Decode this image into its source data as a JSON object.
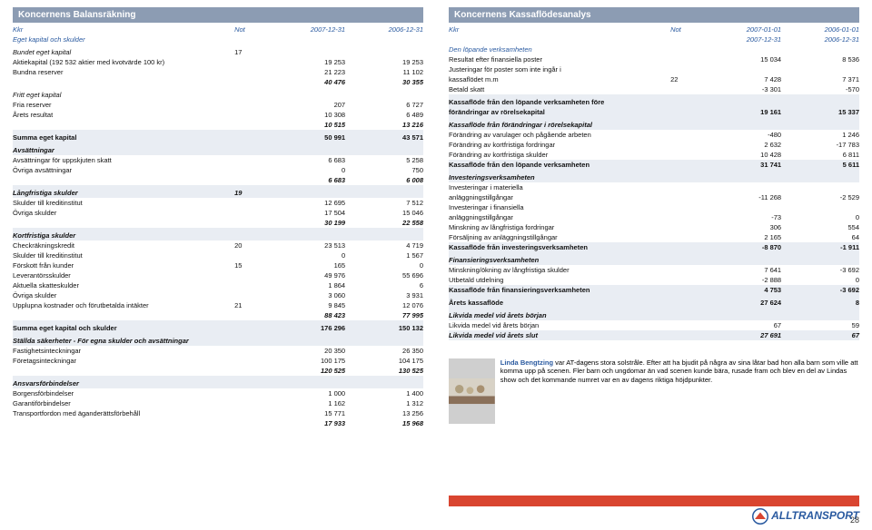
{
  "left": {
    "title": "Koncernens Balansräkning",
    "header": {
      "c1": "Kkr",
      "cnot": "Not",
      "cv": "2007-12-31",
      "cv2": "2006-12-31"
    },
    "sub1": "Eget kapital och skulder",
    "section_bundet": "Bundet eget kapital",
    "not_bundet": "17",
    "rows_bundet": [
      {
        "label": "Aktiekapital (192 532 aktier med kvotvärde 100 kr)",
        "v1": "19 253",
        "v2": "19 253"
      },
      {
        "label": "Bundna reserver",
        "v1": "21 223",
        "v2": "11 102"
      }
    ],
    "sum_bundet": {
      "v1": "40 476",
      "v2": "30 355"
    },
    "section_fritt": "Fritt eget kapital",
    "rows_fritt": [
      {
        "label": "Fria reserver",
        "v1": "207",
        "v2": "6 727"
      },
      {
        "label": "Årets resultat",
        "v1": "10 308",
        "v2": "6 489"
      }
    ],
    "sum_fritt": {
      "v1": "10 515",
      "v2": "13 216"
    },
    "sum_eget": {
      "label": "Summa eget kapital",
      "v1": "50 991",
      "v2": "43 571"
    },
    "avsatt_hdr": "Avsättningar",
    "rows_avsatt": [
      {
        "label": "Avsättningar för uppskjuten skatt",
        "v1": "6 683",
        "v2": "5 258"
      },
      {
        "label": "Övriga avsättningar",
        "v1": "0",
        "v2": "750"
      }
    ],
    "sum_avsatt": {
      "v1": "6 683",
      "v2": "6 008"
    },
    "lang_hdr": "Långfristiga skulder",
    "not_lang": "19",
    "rows_lang": [
      {
        "label": "Skulder till kreditinstitut",
        "v1": "12 695",
        "v2": "7 512"
      },
      {
        "label": "Övriga skulder",
        "v1": "17 504",
        "v2": "15 046"
      }
    ],
    "sum_lang": {
      "v1": "30 199",
      "v2": "22 558"
    },
    "kort_hdr": "Kortfristiga skulder",
    "rows_kort": [
      {
        "label": "Checkräkningskredit",
        "not": "20",
        "v1": "23 513",
        "v2": "4 719"
      },
      {
        "label": "Skulder till kreditinstitut",
        "not": "",
        "v1": "0",
        "v2": "1 567"
      },
      {
        "label": "Förskott från kunder",
        "not": "15",
        "v1": "165",
        "v2": "0"
      },
      {
        "label": "Leverantörsskulder",
        "not": "",
        "v1": "49 976",
        "v2": "55 696"
      },
      {
        "label": "Aktuella skatteskulder",
        "not": "",
        "v1": "1 864",
        "v2": "6"
      },
      {
        "label": "Övriga skulder",
        "not": "",
        "v1": "3 060",
        "v2": "3 931"
      },
      {
        "label": "Upplupna kostnader och förutbetalda intäkter",
        "not": "21",
        "v1": "9 845",
        "v2": "12 076"
      }
    ],
    "sum_kort": {
      "v1": "88 423",
      "v2": "77 995"
    },
    "sum_all": {
      "label": "Summa eget kapital och skulder",
      "v1": "176 296",
      "v2": "150 132"
    },
    "sakerheter_hdr": "Ställda säkerheter - För egna skulder och avsättningar",
    "rows_sak": [
      {
        "label": "Fastighetsinteckningar",
        "v1": "20 350",
        "v2": "26 350"
      },
      {
        "label": "Företagsinteckningar",
        "v1": "100 175",
        "v2": "104 175"
      }
    ],
    "sum_sak": {
      "v1": "120 525",
      "v2": "130 525"
    },
    "ansvar_hdr": "Ansvarsförbindelser",
    "rows_ans": [
      {
        "label": "Borgensförbindelser",
        "v1": "1 000",
        "v2": "1 400"
      },
      {
        "label": "Garantiförbindelser",
        "v1": "1 162",
        "v2": "1 312"
      },
      {
        "label": "Transportfordon med äganderättsförbehåll",
        "v1": "15 771",
        "v2": "13 256"
      }
    ],
    "sum_ans": {
      "v1": "17 933",
      "v2": "15 968"
    }
  },
  "right": {
    "title": "Koncernens Kassaflödesanalys",
    "header": {
      "c1": "Kkr",
      "cnot": "Not",
      "cv_a": "2007-01-01",
      "cv_b": "2007-12-31",
      "cv2_a": "2006-01-01",
      "cv2_b": "2006-12-31"
    },
    "lop_hdr": "Den löpande verksamheten",
    "rows_lop1": [
      {
        "label": "Resultat efter finansiella poster",
        "not": "",
        "v1": "15 034",
        "v2": "8 536"
      },
      {
        "label": "Justeringar för poster som inte ingår i",
        "not": "",
        "v1": "",
        "v2": ""
      },
      {
        "label": "kassaflödet m.m",
        "not": "22",
        "v1": "7 428",
        "v2": "7 371"
      },
      {
        "label": "Betald skatt",
        "not": "",
        "v1": "-3 301",
        "v2": "-570"
      }
    ],
    "kf_fore": {
      "label1": "Kassaflöde från den löpande verksamheten före",
      "label2": "förändringar av rörelsekapital",
      "v1": "19 161",
      "v2": "15 337"
    },
    "ror_hdr": "Kassaflöde från förändringar i rörelsekapital",
    "rows_ror": [
      {
        "label": "Förändring av varulager och pågående arbeten",
        "v1": "-480",
        "v2": "1 246"
      },
      {
        "label": "Förändring av kortfristiga fordringar",
        "v1": "2 632",
        "v2": "-17 783"
      },
      {
        "label": "Förändring av kortfristiga skulder",
        "v1": "10 428",
        "v2": "6 811"
      }
    ],
    "kf_lop": {
      "label": "Kassaflöde från den löpande verksamheten",
      "v1": "31 741",
      "v2": "5 611"
    },
    "inv_hdr": "Investeringsverksamheten",
    "rows_inv": [
      {
        "label": "Investeringar i materiella",
        "v1": "",
        "v2": ""
      },
      {
        "label": "anläggningstillgångar",
        "v1": "-11 268",
        "v2": "-2 529"
      },
      {
        "label": "Investeringar i finansiella",
        "v1": "",
        "v2": ""
      },
      {
        "label": "anläggningstillgångar",
        "v1": "-73",
        "v2": "0"
      },
      {
        "label": "Minskning av långfristiga fordringar",
        "v1": "306",
        "v2": "554"
      },
      {
        "label": "Försäljning av anläggningstillgångar",
        "v1": "2 165",
        "v2": "64"
      }
    ],
    "kf_inv": {
      "label": "Kassaflöde från investeringsverksamheten",
      "v1": "-8 870",
      "v2": "-1 911"
    },
    "fin_hdr": "Finansieringsverksamheten",
    "rows_fin": [
      {
        "label": "Minskning/ökning av långfristiga skulder",
        "v1": "7 641",
        "v2": "-3 692"
      },
      {
        "label": "Utbetald utdelning",
        "v1": "-2 888",
        "v2": "0"
      }
    ],
    "kf_fin": {
      "label": "Kassaflöde från finansieringsverksamheten",
      "v1": "4 753",
      "v2": "-3 692"
    },
    "ar_kf": {
      "label": "Årets kassaflöde",
      "v1": "27 624",
      "v2": "8"
    },
    "liq_hdr": "Likvida medel vid årets början",
    "rows_liq": [
      {
        "label": "Likvida medel vid årets början",
        "v1": "67",
        "v2": "59"
      }
    ],
    "liq_slut": {
      "label": "Likvida medel vid årets slut",
      "v1": "27 691",
      "v2": "67"
    }
  },
  "story": {
    "name": "Linda Bengtzing",
    "text": " var AT-dagens stora solstråle. Efter att ha bjudit på några av sina låtar bad hon alla barn som ville att komma upp på scenen. Fler barn och ungdomar än vad scenen kunde bära, rusade fram och blev en del av Lindas show och det kommande numret var en av dagens riktiga höjdpunkter."
  },
  "logo": "ALLTRANSPORT",
  "page_number": "28",
  "colors": {
    "titlebar": "#8c9cb3",
    "section_bg": "#e9edf3",
    "blue": "#2a5aa0",
    "logo_red": "#d94530"
  }
}
